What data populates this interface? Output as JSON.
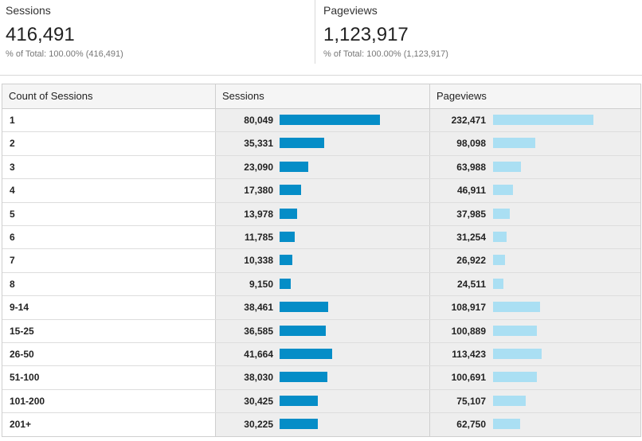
{
  "summary": {
    "sessions": {
      "label": "Sessions",
      "value": "416,491",
      "subtitle": "% of Total: 100.00% (416,491)"
    },
    "pageviews": {
      "label": "Pageviews",
      "value": "1,123,917",
      "subtitle": "% of Total: 100.00% (1,123,917)"
    }
  },
  "table": {
    "headers": {
      "dimension": "Count of Sessions",
      "sessions": "Sessions",
      "pageviews": "Pageviews"
    },
    "bar_colors": {
      "sessions": "#058dc7",
      "pageviews": "#aadff3"
    },
    "rows": [
      {
        "count": "1",
        "sessions": "80,049",
        "sessions_value": 80049,
        "pageviews": "232,471",
        "pageviews_value": 232471
      },
      {
        "count": "2",
        "sessions": "35,331",
        "sessions_value": 35331,
        "pageviews": "98,098",
        "pageviews_value": 98098
      },
      {
        "count": "3",
        "sessions": "23,090",
        "sessions_value": 23090,
        "pageviews": "63,988",
        "pageviews_value": 63988
      },
      {
        "count": "4",
        "sessions": "17,380",
        "sessions_value": 17380,
        "pageviews": "46,911",
        "pageviews_value": 46911
      },
      {
        "count": "5",
        "sessions": "13,978",
        "sessions_value": 13978,
        "pageviews": "37,985",
        "pageviews_value": 37985
      },
      {
        "count": "6",
        "sessions": "11,785",
        "sessions_value": 11785,
        "pageviews": "31,254",
        "pageviews_value": 31254
      },
      {
        "count": "7",
        "sessions": "10,338",
        "sessions_value": 10338,
        "pageviews": "26,922",
        "pageviews_value": 26922
      },
      {
        "count": "8",
        "sessions": "9,150",
        "sessions_value": 9150,
        "pageviews": "24,511",
        "pageviews_value": 24511
      },
      {
        "count": "9-14",
        "sessions": "38,461",
        "sessions_value": 38461,
        "pageviews": "108,917",
        "pageviews_value": 108917
      },
      {
        "count": "15-25",
        "sessions": "36,585",
        "sessions_value": 36585,
        "pageviews": "100,889",
        "pageviews_value": 100889
      },
      {
        "count": "26-50",
        "sessions": "41,664",
        "sessions_value": 41664,
        "pageviews": "113,423",
        "pageviews_value": 113423
      },
      {
        "count": "51-100",
        "sessions": "38,030",
        "sessions_value": 38030,
        "pageviews": "100,691",
        "pageviews_value": 100691
      },
      {
        "count": "101-200",
        "sessions": "30,425",
        "sessions_value": 30425,
        "pageviews": "75,107",
        "pageviews_value": 75107
      },
      {
        "count": "201+",
        "sessions": "30,225",
        "sessions_value": 30225,
        "pageviews": "62,750",
        "pageviews_value": 62750
      }
    ]
  }
}
